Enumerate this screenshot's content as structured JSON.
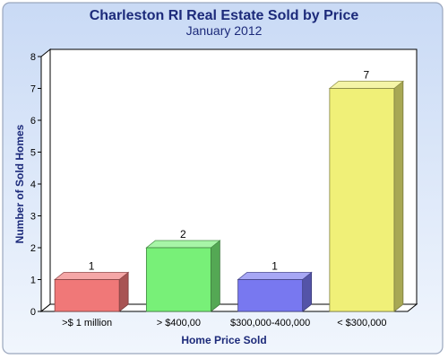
{
  "chart_data": {
    "type": "bar",
    "title": "Charleston RI Real Estate Sold by Price",
    "subtitle": "January 2012",
    "xlabel": "Home Price Sold",
    "ylabel": "Number of Sold Homes",
    "categories": [
      ">$ 1 million",
      "> $400,00",
      "$300,000-400,000",
      "< $300,000"
    ],
    "values": [
      1,
      2,
      1,
      7
    ],
    "ylim": [
      0,
      8
    ],
    "yticks": [
      0,
      1,
      2,
      3,
      4,
      5,
      6,
      7,
      8
    ],
    "grid": false,
    "legend": "none",
    "colors": [
      "#f07878",
      "#78f078",
      "#7878f0",
      "#f0f078"
    ],
    "background": "#dfe9f9"
  }
}
